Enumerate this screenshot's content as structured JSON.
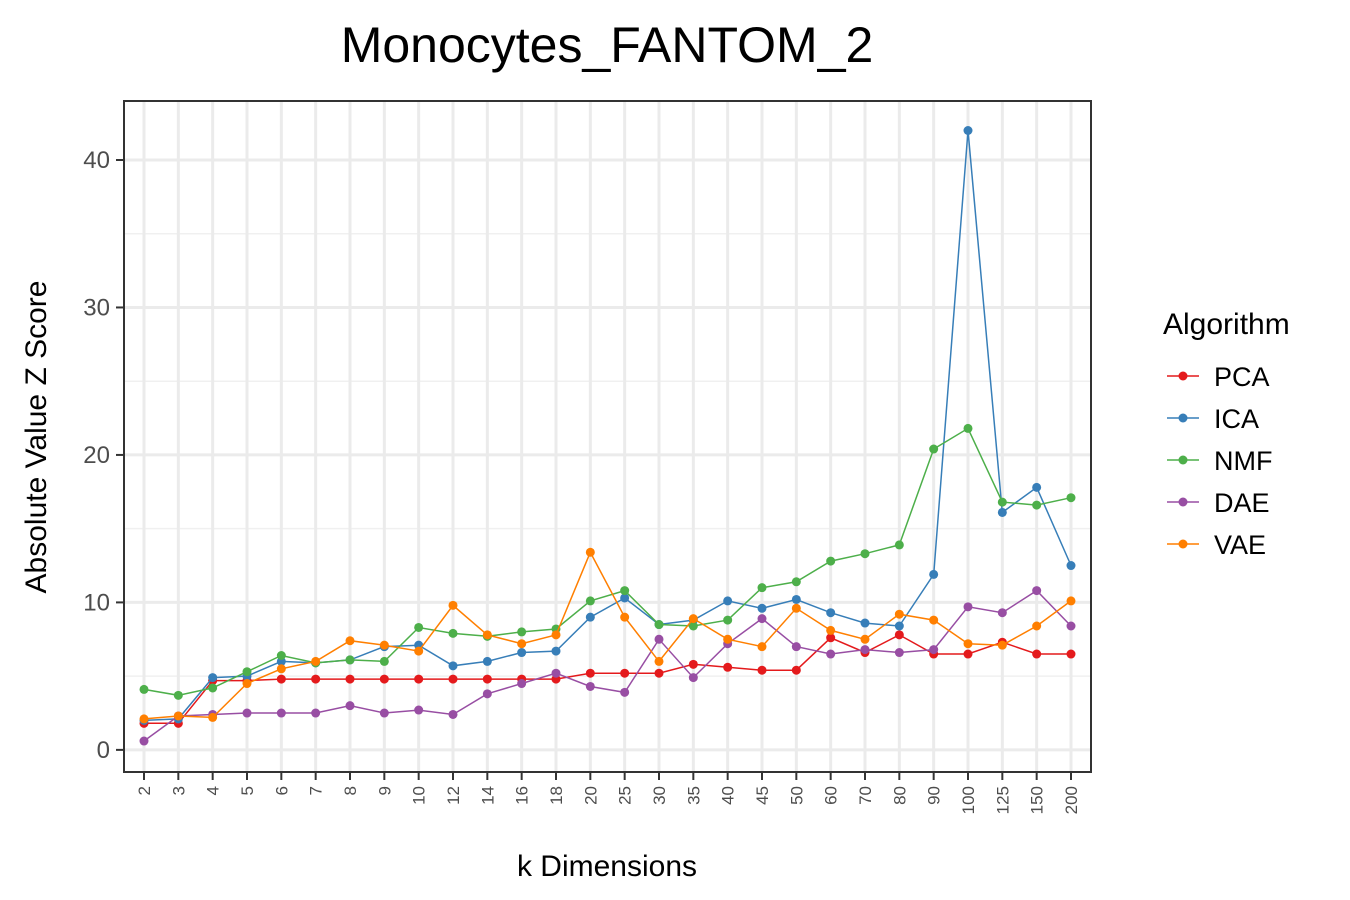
{
  "chart_data": {
    "type": "line",
    "title": "Monocytes_FANTOM_2",
    "xlabel": "k Dimensions",
    "ylabel": "Absolute Value Z Score",
    "ylim": [
      -1.5,
      44
    ],
    "yticks": [
      "0",
      "10",
      "20",
      "30",
      "40"
    ],
    "categories": [
      "2",
      "3",
      "4",
      "5",
      "6",
      "7",
      "8",
      "9",
      "10",
      "12",
      "14",
      "16",
      "18",
      "20",
      "25",
      "30",
      "35",
      "40",
      "45",
      "50",
      "60",
      "70",
      "80",
      "90",
      "100",
      "125",
      "150",
      "200"
    ],
    "grid": true,
    "legend": {
      "title": "Algorithm",
      "position": "right"
    },
    "series": [
      {
        "name": "PCA",
        "color": "#E41A1C",
        "values": [
          1.8,
          1.8,
          4.7,
          4.7,
          4.8,
          4.8,
          4.8,
          4.8,
          4.8,
          4.8,
          4.8,
          4.8,
          4.8,
          5.2,
          5.2,
          5.2,
          5.8,
          5.6,
          5.4,
          5.4,
          7.6,
          6.6,
          7.8,
          6.5,
          6.5,
          7.3,
          6.5,
          6.5
        ]
      },
      {
        "name": "ICA",
        "color": "#377EB8",
        "values": [
          2.0,
          2.1,
          4.9,
          5.0,
          6.0,
          5.9,
          6.1,
          7.0,
          7.1,
          5.7,
          6.0,
          6.6,
          6.7,
          9.0,
          10.3,
          8.5,
          8.8,
          10.1,
          9.6,
          10.2,
          9.3,
          8.6,
          8.4,
          11.9,
          42.0,
          16.1,
          17.8,
          12.5
        ]
      },
      {
        "name": "NMF",
        "color": "#4DAF4A",
        "values": [
          4.1,
          3.7,
          4.2,
          5.3,
          6.4,
          5.9,
          6.1,
          6.0,
          8.3,
          7.9,
          7.7,
          8.0,
          8.2,
          10.1,
          10.8,
          8.5,
          8.4,
          8.8,
          11.0,
          11.4,
          12.8,
          13.3,
          13.9,
          20.4,
          21.8,
          16.8,
          16.6,
          17.1
        ]
      },
      {
        "name": "DAE",
        "color": "#984EA3",
        "values": [
          0.6,
          2.3,
          2.4,
          2.5,
          2.5,
          2.5,
          3.0,
          2.5,
          2.7,
          2.4,
          3.8,
          4.5,
          5.2,
          4.3,
          3.9,
          7.5,
          4.9,
          7.2,
          8.9,
          7.0,
          6.5,
          6.8,
          6.6,
          6.8,
          9.7,
          9.3,
          10.8,
          8.4
        ]
      },
      {
        "name": "VAE",
        "color": "#FF7F00",
        "values": [
          2.1,
          2.3,
          2.2,
          4.5,
          5.5,
          6.0,
          7.4,
          7.1,
          6.7,
          9.8,
          7.8,
          7.2,
          7.8,
          13.4,
          9.0,
          6.0,
          8.9,
          7.5,
          7.0,
          9.6,
          8.1,
          7.5,
          9.2,
          8.8,
          7.2,
          7.1,
          8.4,
          10.1
        ]
      }
    ]
  }
}
